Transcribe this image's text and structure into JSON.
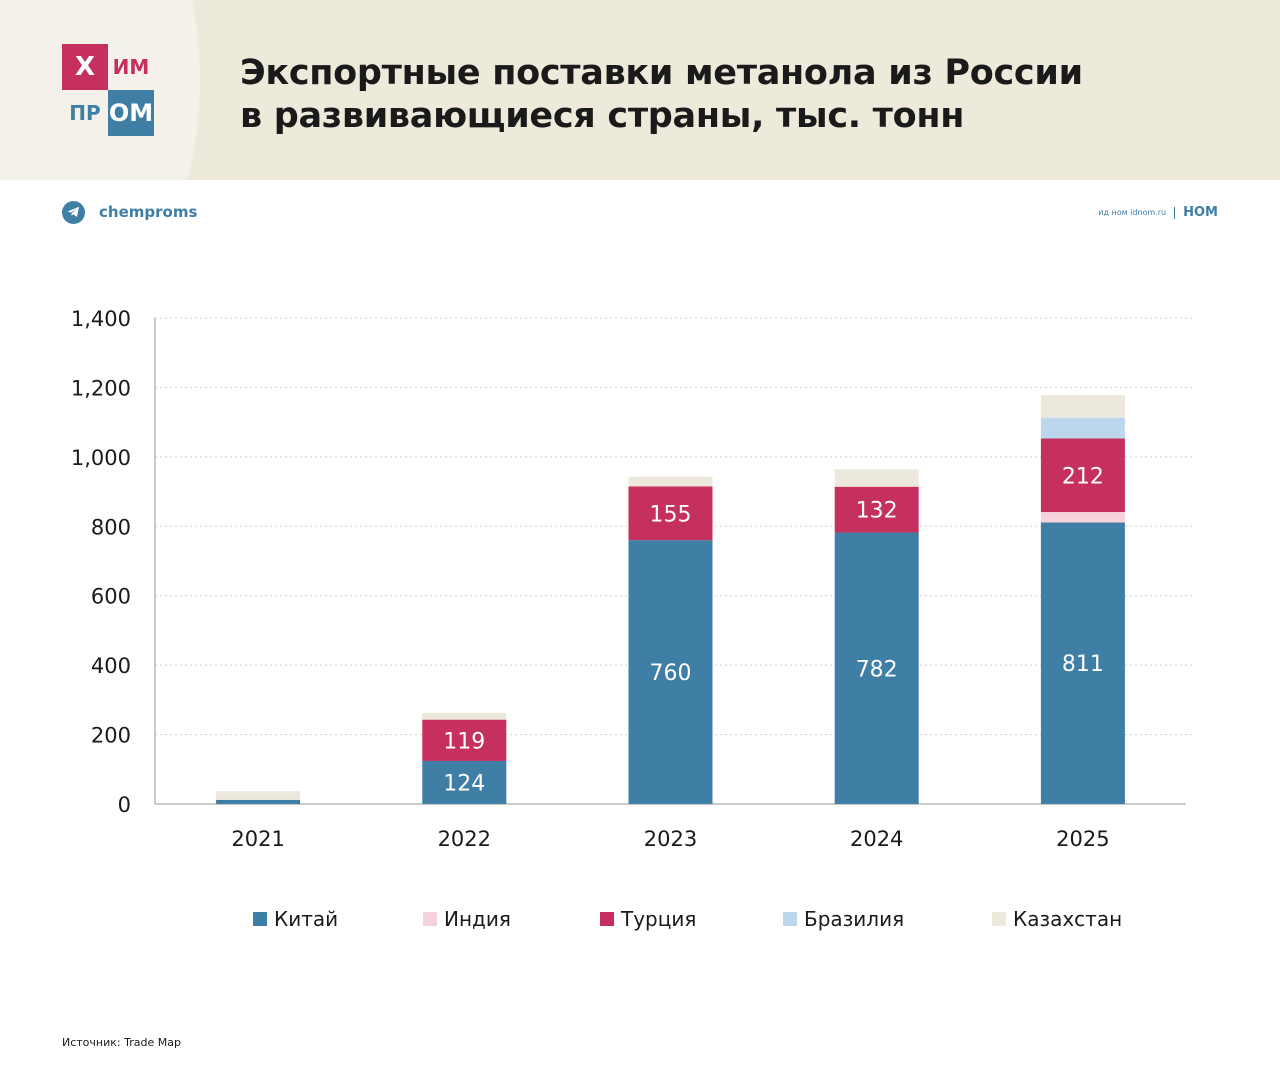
{
  "header": {
    "logo": {
      "x": "Х",
      "im": "ИМ",
      "pr": "ПР",
      "om": "ОМ"
    },
    "title_line1": "Экспортные поставки метанола из России",
    "title_line2": "в развивающиеся страны, тыс. тонн"
  },
  "telegram": {
    "label": "chemproms",
    "icon": "telegram-icon"
  },
  "brand": {
    "small": "ид ном idnom.ru",
    "big": "НОМ"
  },
  "source": "Источник: Trade Map",
  "colors": {
    "china": "#3f7ea5",
    "india": "#f6d3dc",
    "turkey": "#c5305f",
    "brazil": "#bcd7ec",
    "kazakhstan": "#ece8dc"
  },
  "chart_data": {
    "type": "bar",
    "stacked": true,
    "categories": [
      "2021",
      "2022",
      "2023",
      "2024",
      "2025"
    ],
    "series": [
      {
        "name": "Китай",
        "values": [
          12,
          124,
          760,
          782,
          811
        ],
        "labels": [
          "",
          "124",
          "760",
          "782",
          "811"
        ],
        "color": "#3f7ea5"
      },
      {
        "name": "Индия",
        "values": [
          0,
          0,
          0,
          0,
          30
        ],
        "labels": [
          "",
          "",
          "",
          "",
          ""
        ],
        "color": "#f6d3dc"
      },
      {
        "name": "Турция",
        "values": [
          0,
          119,
          155,
          132,
          212
        ],
        "labels": [
          "",
          "119",
          "155",
          "132",
          "212"
        ],
        "color": "#c5305f"
      },
      {
        "name": "Бразилия",
        "values": [
          0,
          0,
          0,
          0,
          60
        ],
        "labels": [
          "",
          "",
          "",
          "",
          ""
        ],
        "color": "#bcd7ec"
      },
      {
        "name": "Казахстан",
        "values": [
          25,
          20,
          28,
          50,
          65
        ],
        "labels": [
          "",
          "",
          "",
          "",
          ""
        ],
        "color": "#ece8dc"
      }
    ],
    "ylim": [
      0,
      1400
    ],
    "yticks": [
      "0",
      "200",
      "400",
      "600",
      "800",
      "1,000",
      "1,200",
      "1,400"
    ],
    "ytick_values": [
      0,
      200,
      400,
      600,
      800,
      1000,
      1200,
      1400
    ],
    "grid": true,
    "legend": "bottom"
  }
}
